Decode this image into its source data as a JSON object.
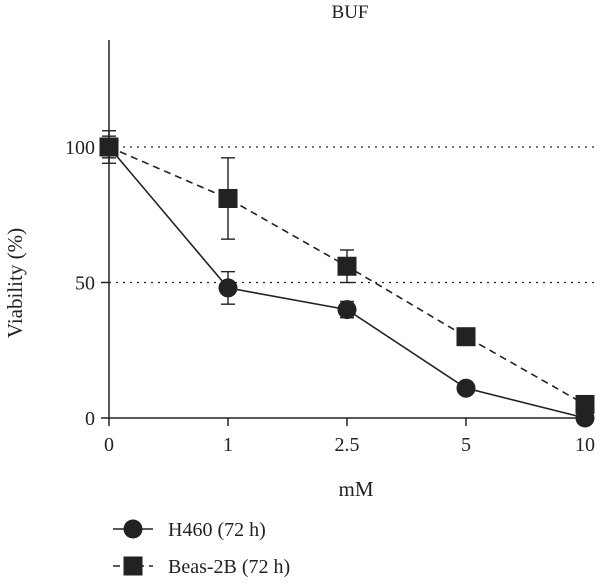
{
  "chart_data": {
    "type": "line",
    "title": "BUF",
    "xlabel": "mM",
    "ylabel": "Viability (%)",
    "categories": [
      "0",
      "1",
      "2.5",
      "5",
      "10"
    ],
    "yticks": [
      0,
      50,
      100
    ],
    "ylim": [
      0,
      140
    ],
    "reference_lines": [
      50,
      100
    ],
    "series": [
      {
        "name": "H460 (72 h)",
        "marker": "circle",
        "line_style": "solid",
        "values": [
          100,
          48,
          40,
          11,
          0
        ],
        "errors": [
          6,
          6,
          3,
          0,
          0
        ]
      },
      {
        "name": "Beas-2B (72 h)",
        "marker": "square",
        "line_style": "dashed",
        "values": [
          100,
          81,
          56,
          30,
          5
        ],
        "errors": [
          4,
          15,
          6,
          0,
          0
        ]
      }
    ],
    "legend_position": "bottom-left"
  },
  "colors": {
    "ink": "#222222",
    "marker": "#222222"
  }
}
